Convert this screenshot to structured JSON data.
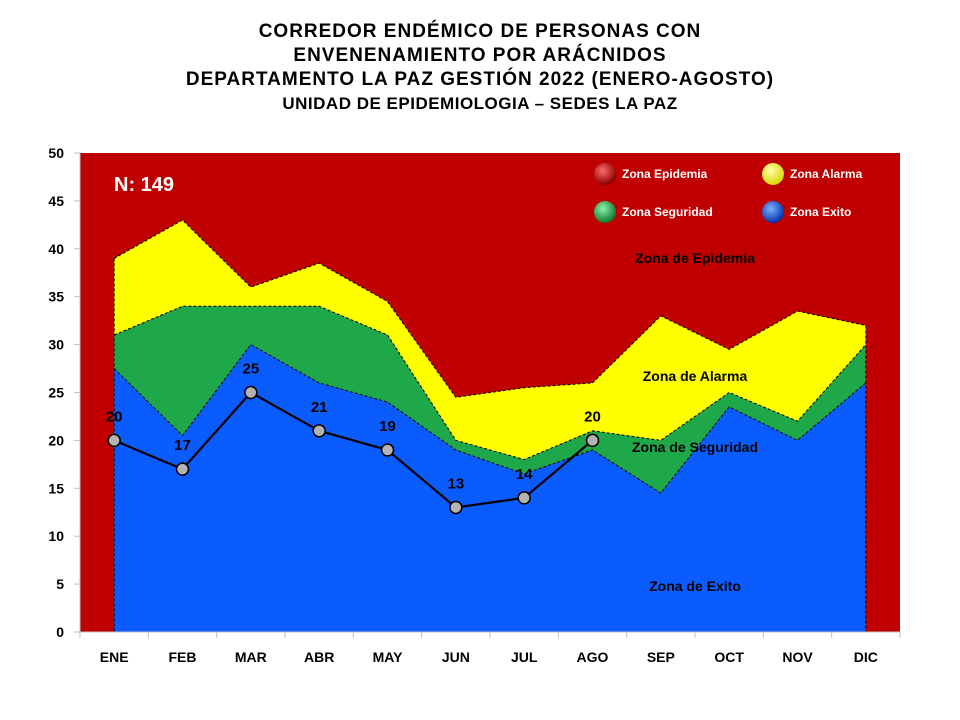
{
  "title": {
    "line1": "CORREDOR ENDÉMICO DE PERSONAS CON",
    "line2": "ENVENENAMIENTO POR ARÁCNIDOS",
    "line3": "DEPARTAMENTO  LA PAZ GESTIÓN 2022 (ENERO-AGOSTO)",
    "line4": "UNIDAD DE EPIDEMIOLOGIA – SEDES LA PAZ"
  },
  "colors": {
    "epidemia": "#C00000",
    "alarma": "#FFFF00",
    "seguridad": "#1FA84A",
    "exito": "#0B5CFF",
    "line": "#000000",
    "marker": "#B3B3B3"
  },
  "chart_data": {
    "type": "area",
    "categories": [
      "ENE",
      "FEB",
      "MAR",
      "ABR",
      "MAY",
      "JUN",
      "JUL",
      "AGO",
      "SEP",
      "OCT",
      "NOV",
      "DIC"
    ],
    "ylim": [
      0,
      50
    ],
    "yticks": [
      0,
      5,
      10,
      15,
      20,
      25,
      30,
      35,
      40,
      45,
      50
    ],
    "n_label": "N: 149",
    "series": [
      {
        "name": "Zona Exito",
        "values": [
          27.5,
          20.5,
          30,
          26,
          24,
          19,
          16.5,
          19,
          14.5,
          23.5,
          20,
          26
        ]
      },
      {
        "name": "Zona Seguridad",
        "values": [
          31,
          34,
          34,
          34,
          31,
          20,
          18,
          21,
          20,
          25,
          22,
          30
        ]
      },
      {
        "name": "Zona Alarma",
        "values": [
          39,
          43,
          36,
          38.5,
          34.5,
          24.5,
          25.5,
          26,
          33,
          29.5,
          33.5,
          32
        ]
      },
      {
        "name": "Zona Epidemia",
        "values": [
          50,
          50,
          50,
          50,
          50,
          50,
          50,
          50,
          50,
          50,
          50,
          50
        ]
      }
    ],
    "cases": {
      "categories": [
        "ENE",
        "FEB",
        "MAR",
        "ABR",
        "MAY",
        "JUN",
        "JUL",
        "AGO"
      ],
      "values": [
        20,
        17,
        25,
        21,
        19,
        13,
        14,
        20
      ]
    },
    "legend": [
      "Zona Epidemia",
      "Zona Alarma",
      "Zona Seguridad",
      "Zona Exito"
    ],
    "legend_position": "top-right",
    "zone_labels": [
      "Zona de Epidemia",
      "Zona de Alarma",
      "Zona de Seguridad",
      "Zona de Exito"
    ]
  }
}
